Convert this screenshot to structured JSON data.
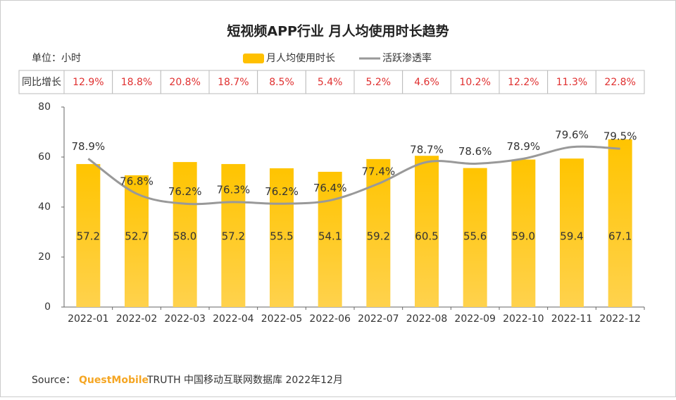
{
  "chart_data": {
    "type": "bar-line",
    "title": "短视频APP行业 月人均使用时长趋势",
    "unit": "单位：小时",
    "categories": [
      "2022-01",
      "2022-02",
      "2022-03",
      "2022-04",
      "2022-05",
      "2022-06",
      "2022-07",
      "2022-08",
      "2022-09",
      "2022-10",
      "2022-11",
      "2022-12"
    ],
    "series": [
      {
        "name": "月人均使用时长",
        "color": "#FFC000",
        "values": [
          57.2,
          52.7,
          58.0,
          57.2,
          55.5,
          54.1,
          59.2,
          60.5,
          55.6,
          59.0,
          59.4,
          67.1
        ],
        "value_labels": [
          "57.2",
          "52.7",
          "58.0",
          "57.2",
          "55.5",
          "54.1",
          "59.2",
          "60.5",
          "55.6",
          "59.0",
          "59.4",
          "67.1"
        ]
      },
      {
        "name": "活跃渗透率",
        "color": "#999999",
        "axis": "y2",
        "values": [
          78.9,
          76.8,
          76.2,
          76.3,
          76.2,
          76.4,
          77.4,
          78.7,
          78.6,
          78.9,
          79.6,
          79.5
        ],
        "value_labels": [
          "78.9%",
          "76.8%",
          "76.2%",
          "76.3%",
          "76.2%",
          "76.4%",
          "77.4%",
          "78.7%",
          "78.6%",
          "78.9%",
          "79.6%",
          "79.5%"
        ]
      }
    ],
    "yoy": {
      "label": "同比增长",
      "values": [
        12.9,
        18.8,
        20.8,
        18.7,
        8.5,
        5.4,
        5.2,
        4.6,
        10.2,
        12.2,
        11.3,
        22.8
      ],
      "value_labels": [
        "12.9%",
        "18.8%",
        "20.8%",
        "18.7%",
        "8.5%",
        "5.4%",
        "5.2%",
        "4.6%",
        "10.2%",
        "12.2%",
        "11.3%",
        "22.8%"
      ]
    },
    "ylim": [
      0,
      80
    ],
    "yticks": [
      0,
      20,
      40,
      60,
      80
    ],
    "y2lim": [
      70,
      82
    ],
    "source": {
      "prefix": "Source：",
      "brand": "QuestMobile",
      "text": "TRUTH 中国移动互联网数据库 2022年12月"
    }
  }
}
